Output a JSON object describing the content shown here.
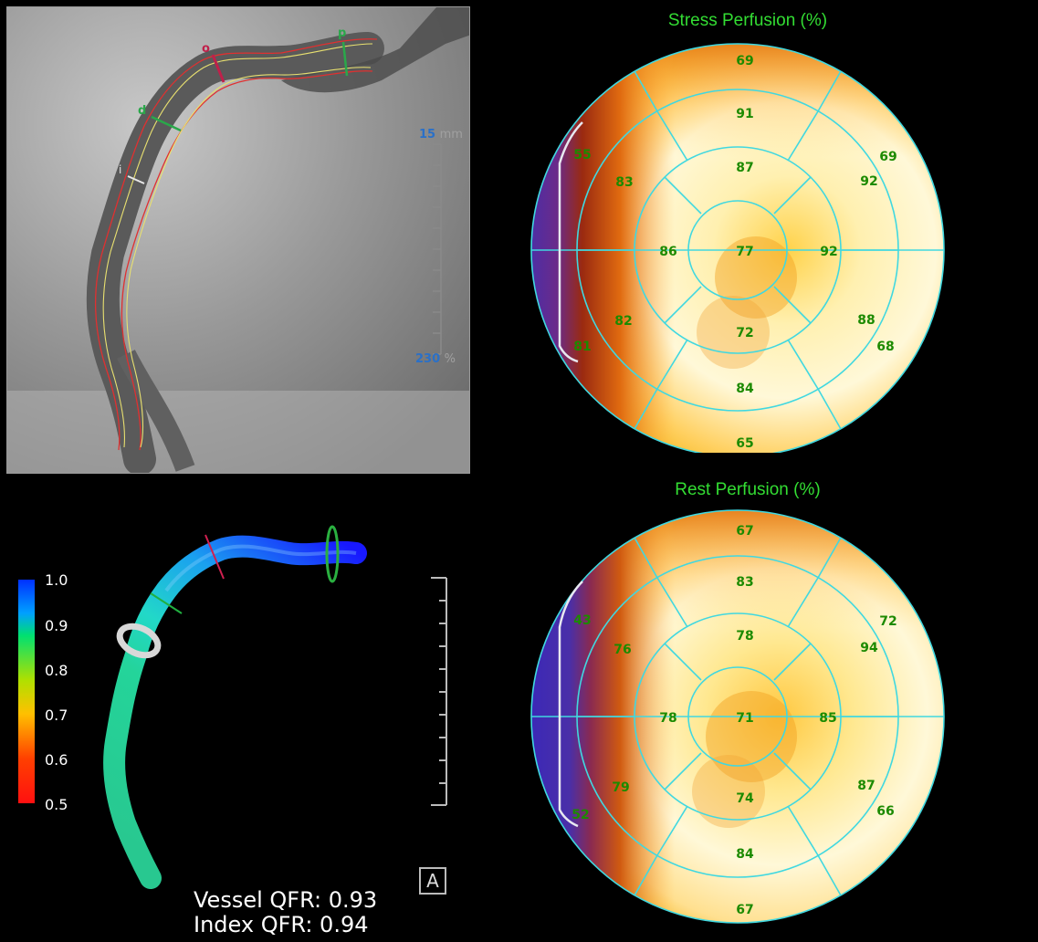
{
  "angio": {
    "scale_top_value": "15",
    "scale_top_unit": "mm",
    "scale_bottom_value": "230",
    "scale_bottom_unit": "%",
    "markers": [
      "p",
      "o",
      "d",
      "i"
    ]
  },
  "model3d": {
    "colorbar_labels": [
      "1.0",
      "0.9",
      "0.8",
      "0.7",
      "0.6",
      "0.5"
    ],
    "vessel_qfr": "Vessel QFR: 0.93",
    "index_qfr": "Index QFR: 0.94",
    "view_button": "A"
  },
  "stress": {
    "title": "Stress Perfusion (%)",
    "segments": {
      "s1": "69",
      "s2": "69",
      "s3": "68",
      "s4": "65",
      "s5": "81",
      "s6": "55",
      "s7": "91",
      "s8": "92",
      "s9": "88",
      "s10": "84",
      "s11": "82",
      "s12": "83",
      "s13": "87",
      "s14": "92",
      "s15": "72",
      "s16": "86",
      "s17": "77"
    }
  },
  "rest": {
    "title": "Rest Perfusion (%)",
    "segments": {
      "s1": "67",
      "s2": "72",
      "s3": "66",
      "s4": "67",
      "s5": "52",
      "s6": "43",
      "s7": "83",
      "s8": "94",
      "s9": "87",
      "s10": "84",
      "s11": "79",
      "s12": "76",
      "s13": "78",
      "s14": "85",
      "s15": "74",
      "s16": "78",
      "s17": "71"
    }
  },
  "colors": {
    "label_green": "#1c8a00",
    "title_green": "#33dd33",
    "segment_lines": "#40d8e0",
    "defect_purple": "#4a2fa8"
  }
}
